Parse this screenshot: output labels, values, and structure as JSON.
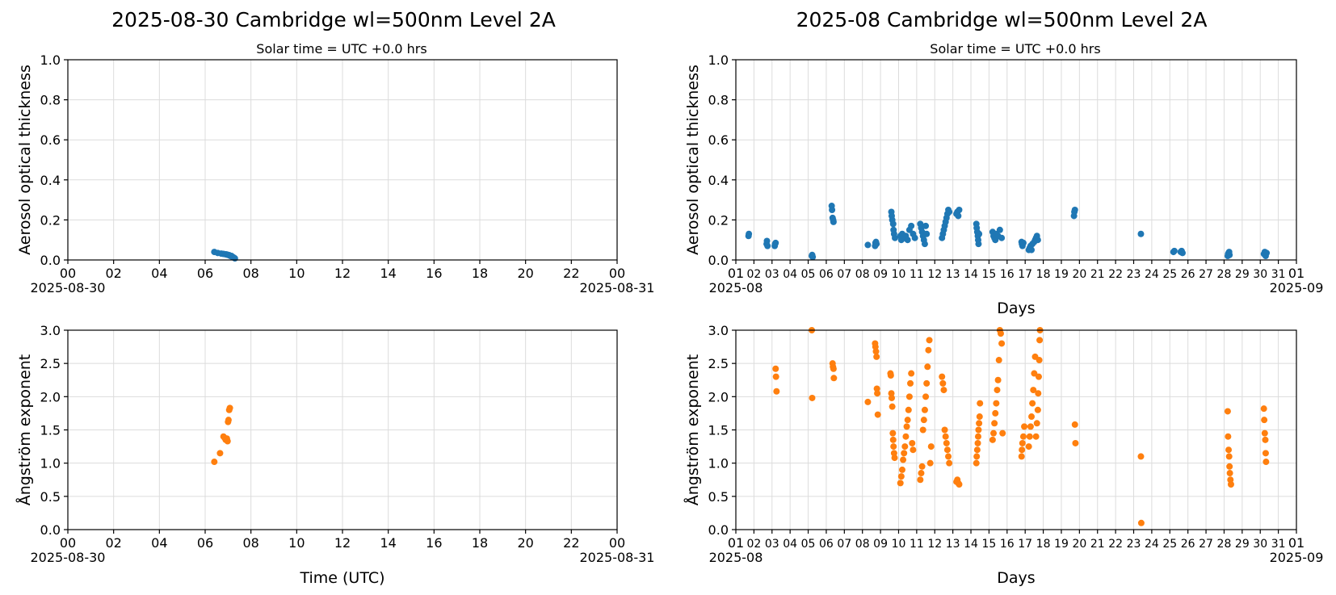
{
  "chart_data": [
    {
      "type": "scatter",
      "title": "2025-08-30  Cambridge  wl=500nm  Level 2A",
      "subtitle": "Solar time = UTC +0.0 hrs",
      "ylabel": "Aerosol optical thickness",
      "xlabel": "",
      "ylim": [
        0,
        1.0
      ],
      "yticks": [
        "0.0",
        "0.2",
        "0.4",
        "0.6",
        "0.8",
        "1.0"
      ],
      "xlim": [
        0,
        24
      ],
      "xticks": [
        "00",
        "02",
        "04",
        "06",
        "08",
        "10",
        "12",
        "14",
        "16",
        "18",
        "20",
        "22",
        "00"
      ],
      "x_date_start": "2025-08-30",
      "x_date_end": "2025-08-31",
      "grid": true,
      "color": "#1f77b4",
      "points": [
        [
          6.4,
          0.04
        ],
        [
          6.55,
          0.035
        ],
        [
          6.7,
          0.032
        ],
        [
          6.8,
          0.03
        ],
        [
          6.9,
          0.028
        ],
        [
          6.95,
          0.027
        ],
        [
          7.0,
          0.025
        ],
        [
          7.05,
          0.024
        ],
        [
          7.1,
          0.02
        ],
        [
          7.15,
          0.02
        ],
        [
          7.2,
          0.015
        ],
        [
          7.25,
          0.012
        ],
        [
          7.3,
          0.008
        ]
      ]
    },
    {
      "type": "scatter",
      "title": "2025-08  Cambridge  wl=500nm  Level 2A",
      "subtitle": "Solar time = UTC +0.0 hrs",
      "ylabel": "Aerosol optical thickness",
      "xlabel": "Days",
      "ylim": [
        0,
        1.0
      ],
      "yticks": [
        "0.0",
        "0.2",
        "0.4",
        "0.6",
        "0.8",
        "1.0"
      ],
      "xlim": [
        1,
        32
      ],
      "xticks": [
        "01",
        "02",
        "03",
        "04",
        "05",
        "06",
        "07",
        "08",
        "09",
        "10",
        "11",
        "12",
        "13",
        "14",
        "15",
        "16",
        "17",
        "18",
        "19",
        "20",
        "21",
        "22",
        "23",
        "24",
        "25",
        "26",
        "27",
        "28",
        "29",
        "30",
        "31",
        "01"
      ],
      "x_date_start": "2025-08",
      "x_date_end": "2025-09",
      "grid": true,
      "color": "#1f77b4",
      "points": [
        [
          1.7,
          0.12
        ],
        [
          1.72,
          0.13
        ],
        [
          2.7,
          0.08
        ],
        [
          2.72,
          0.095
        ],
        [
          2.75,
          0.07
        ],
        [
          3.15,
          0.07
        ],
        [
          3.17,
          0.08
        ],
        [
          3.2,
          0.085
        ],
        [
          5.2,
          0.02
        ],
        [
          5.22,
          0.025
        ],
        [
          5.25,
          0.015
        ],
        [
          6.3,
          0.27
        ],
        [
          6.32,
          0.25
        ],
        [
          6.35,
          0.21
        ],
        [
          6.38,
          0.2
        ],
        [
          6.4,
          0.19
        ],
        [
          8.3,
          0.075
        ],
        [
          8.7,
          0.07
        ],
        [
          8.72,
          0.085
        ],
        [
          8.75,
          0.09
        ],
        [
          8.78,
          0.08
        ],
        [
          9.6,
          0.24
        ],
        [
          9.62,
          0.22
        ],
        [
          9.65,
          0.2
        ],
        [
          9.7,
          0.18
        ],
        [
          9.72,
          0.15
        ],
        [
          9.75,
          0.13
        ],
        [
          9.8,
          0.11
        ],
        [
          10.1,
          0.12
        ],
        [
          10.15,
          0.1
        ],
        [
          10.2,
          0.13
        ],
        [
          10.3,
          0.11
        ],
        [
          10.4,
          0.12
        ],
        [
          10.5,
          0.1
        ],
        [
          10.6,
          0.15
        ],
        [
          10.7,
          0.17
        ],
        [
          10.8,
          0.13
        ],
        [
          10.9,
          0.11
        ],
        [
          11.2,
          0.18
        ],
        [
          11.25,
          0.16
        ],
        [
          11.3,
          0.14
        ],
        [
          11.35,
          0.12
        ],
        [
          11.4,
          0.1
        ],
        [
          11.45,
          0.08
        ],
        [
          11.5,
          0.17
        ],
        [
          11.55,
          0.13
        ],
        [
          12.4,
          0.11
        ],
        [
          12.45,
          0.13
        ],
        [
          12.5,
          0.15
        ],
        [
          12.55,
          0.17
        ],
        [
          12.6,
          0.19
        ],
        [
          12.65,
          0.21
        ],
        [
          12.7,
          0.23
        ],
        [
          12.75,
          0.25
        ],
        [
          12.8,
          0.24
        ],
        [
          13.2,
          0.23
        ],
        [
          13.25,
          0.24
        ],
        [
          13.3,
          0.22
        ],
        [
          13.35,
          0.25
        ],
        [
          14.3,
          0.18
        ],
        [
          14.32,
          0.16
        ],
        [
          14.35,
          0.14
        ],
        [
          14.38,
          0.12
        ],
        [
          14.4,
          0.1
        ],
        [
          14.42,
          0.08
        ],
        [
          14.45,
          0.13
        ],
        [
          15.2,
          0.14
        ],
        [
          15.25,
          0.12
        ],
        [
          15.3,
          0.11
        ],
        [
          15.35,
          0.1
        ],
        [
          15.4,
          0.13
        ],
        [
          15.5,
          0.12
        ],
        [
          15.6,
          0.15
        ],
        [
          15.7,
          0.11
        ],
        [
          16.8,
          0.09
        ],
        [
          16.82,
          0.08
        ],
        [
          16.85,
          0.07
        ],
        [
          16.9,
          0.085
        ],
        [
          17.2,
          0.05
        ],
        [
          17.25,
          0.06
        ],
        [
          17.3,
          0.07
        ],
        [
          17.35,
          0.05
        ],
        [
          17.4,
          0.08
        ],
        [
          17.5,
          0.09
        ],
        [
          17.55,
          0.1
        ],
        [
          17.6,
          0.11
        ],
        [
          17.65,
          0.12
        ],
        [
          17.7,
          0.1
        ],
        [
          19.7,
          0.22
        ],
        [
          19.72,
          0.24
        ],
        [
          19.75,
          0.25
        ],
        [
          23.4,
          0.13
        ],
        [
          25.2,
          0.04
        ],
        [
          25.25,
          0.045
        ],
        [
          25.6,
          0.04
        ],
        [
          25.65,
          0.045
        ],
        [
          25.7,
          0.035
        ],
        [
          28.2,
          0.02
        ],
        [
          28.22,
          0.03
        ],
        [
          28.25,
          0.035
        ],
        [
          28.28,
          0.04
        ],
        [
          28.3,
          0.025
        ],
        [
          30.2,
          0.03
        ],
        [
          30.25,
          0.04
        ],
        [
          30.3,
          0.02
        ],
        [
          30.35,
          0.035
        ]
      ]
    },
    {
      "type": "scatter",
      "title": "",
      "subtitle": "",
      "ylabel": "Ångström exponent",
      "xlabel": "Time (UTC)",
      "ylim": [
        0,
        3.0
      ],
      "yticks": [
        "0.0",
        "0.5",
        "1.0",
        "1.5",
        "2.0",
        "2.5",
        "3.0"
      ],
      "xlim": [
        0,
        24
      ],
      "xticks": [
        "00",
        "02",
        "04",
        "06",
        "08",
        "10",
        "12",
        "14",
        "16",
        "18",
        "20",
        "22",
        "00"
      ],
      "x_date_start": "2025-08-30",
      "x_date_end": "2025-08-31",
      "grid": true,
      "color": "#ff7f0e",
      "points": [
        [
          6.4,
          1.02
        ],
        [
          6.65,
          1.15
        ],
        [
          6.8,
          1.4
        ],
        [
          6.85,
          1.38
        ],
        [
          6.9,
          1.35
        ],
        [
          6.95,
          1.37
        ],
        [
          6.98,
          1.33
        ],
        [
          7.0,
          1.62
        ],
        [
          7.02,
          1.65
        ],
        [
          7.05,
          1.8
        ],
        [
          7.08,
          1.83
        ]
      ]
    },
    {
      "type": "scatter",
      "title": "",
      "subtitle": "",
      "ylabel": "Ångström exponent",
      "xlabel": "Days",
      "ylim": [
        0,
        3.0
      ],
      "yticks": [
        "0.0",
        "0.5",
        "1.0",
        "1.5",
        "2.0",
        "2.5",
        "3.0"
      ],
      "xlim": [
        1,
        32
      ],
      "xticks": [
        "01",
        "02",
        "03",
        "04",
        "05",
        "06",
        "07",
        "08",
        "09",
        "10",
        "11",
        "12",
        "13",
        "14",
        "15",
        "16",
        "17",
        "18",
        "19",
        "20",
        "21",
        "22",
        "23",
        "24",
        "25",
        "26",
        "27",
        "28",
        "29",
        "30",
        "31",
        "01"
      ],
      "x_date_start": "2025-08",
      "x_date_end": "2025-09",
      "grid": true,
      "color": "#ff7f0e",
      "points": [
        [
          3.2,
          2.42
        ],
        [
          3.22,
          2.3
        ],
        [
          3.25,
          2.08
        ],
        [
          5.2,
          3.0
        ],
        [
          5.22,
          1.98
        ],
        [
          6.35,
          2.5
        ],
        [
          6.37,
          2.45
        ],
        [
          6.4,
          2.42
        ],
        [
          6.42,
          2.28
        ],
        [
          8.3,
          1.92
        ],
        [
          8.7,
          2.8
        ],
        [
          8.72,
          2.75
        ],
        [
          8.75,
          2.68
        ],
        [
          8.78,
          2.6
        ],
        [
          8.8,
          2.12
        ],
        [
          8.82,
          2.05
        ],
        [
          8.85,
          1.73
        ],
        [
          9.55,
          2.35
        ],
        [
          9.57,
          2.32
        ],
        [
          9.6,
          2.05
        ],
        [
          9.62,
          1.98
        ],
        [
          9.65,
          1.85
        ],
        [
          9.68,
          1.45
        ],
        [
          9.7,
          1.35
        ],
        [
          9.72,
          1.25
        ],
        [
          9.75,
          1.15
        ],
        [
          9.78,
          1.08
        ],
        [
          10.1,
          0.7
        ],
        [
          10.15,
          0.8
        ],
        [
          10.2,
          0.9
        ],
        [
          10.25,
          1.05
        ],
        [
          10.3,
          1.15
        ],
        [
          10.35,
          1.25
        ],
        [
          10.4,
          1.4
        ],
        [
          10.45,
          1.55
        ],
        [
          10.5,
          1.65
        ],
        [
          10.55,
          1.8
        ],
        [
          10.6,
          2.0
        ],
        [
          10.65,
          2.2
        ],
        [
          10.7,
          2.35
        ],
        [
          10.75,
          1.3
        ],
        [
          10.8,
          1.2
        ],
        [
          11.2,
          0.75
        ],
        [
          11.25,
          0.85
        ],
        [
          11.3,
          0.95
        ],
        [
          11.35,
          1.5
        ],
        [
          11.4,
          1.65
        ],
        [
          11.45,
          1.8
        ],
        [
          11.5,
          2.0
        ],
        [
          11.55,
          2.2
        ],
        [
          11.6,
          2.45
        ],
        [
          11.65,
          2.7
        ],
        [
          11.7,
          2.85
        ],
        [
          11.75,
          1.0
        ],
        [
          11.8,
          1.25
        ],
        [
          12.4,
          2.3
        ],
        [
          12.45,
          2.2
        ],
        [
          12.5,
          2.1
        ],
        [
          12.55,
          1.5
        ],
        [
          12.6,
          1.4
        ],
        [
          12.65,
          1.3
        ],
        [
          12.7,
          1.2
        ],
        [
          12.75,
          1.1
        ],
        [
          12.8,
          1.0
        ],
        [
          13.2,
          0.72
        ],
        [
          13.25,
          0.75
        ],
        [
          13.3,
          0.7
        ],
        [
          13.35,
          0.68
        ],
        [
          14.3,
          1.0
        ],
        [
          14.32,
          1.1
        ],
        [
          14.35,
          1.2
        ],
        [
          14.38,
          1.3
        ],
        [
          14.4,
          1.4
        ],
        [
          14.42,
          1.5
        ],
        [
          14.45,
          1.6
        ],
        [
          14.48,
          1.7
        ],
        [
          14.5,
          1.9
        ],
        [
          15.2,
          1.35
        ],
        [
          15.25,
          1.45
        ],
        [
          15.3,
          1.6
        ],
        [
          15.35,
          1.75
        ],
        [
          15.4,
          1.9
        ],
        [
          15.45,
          2.1
        ],
        [
          15.5,
          2.25
        ],
        [
          15.55,
          2.55
        ],
        [
          15.6,
          3.0
        ],
        [
          15.65,
          2.95
        ],
        [
          15.7,
          2.8
        ],
        [
          15.75,
          1.45
        ],
        [
          16.8,
          1.1
        ],
        [
          16.82,
          1.2
        ],
        [
          16.85,
          1.3
        ],
        [
          16.9,
          1.4
        ],
        [
          16.95,
          1.55
        ],
        [
          17.2,
          1.25
        ],
        [
          17.25,
          1.4
        ],
        [
          17.3,
          1.55
        ],
        [
          17.35,
          1.7
        ],
        [
          17.4,
          1.9
        ],
        [
          17.45,
          2.1
        ],
        [
          17.5,
          2.35
        ],
        [
          17.55,
          2.6
        ],
        [
          17.6,
          1.4
        ],
        [
          17.65,
          1.6
        ],
        [
          17.7,
          1.8
        ],
        [
          17.72,
          2.05
        ],
        [
          17.75,
          2.3
        ],
        [
          17.78,
          2.55
        ],
        [
          17.8,
          2.85
        ],
        [
          17.82,
          3.0
        ],
        [
          19.75,
          1.58
        ],
        [
          19.78,
          1.3
        ],
        [
          23.4,
          1.1
        ],
        [
          23.42,
          0.1
        ],
        [
          28.2,
          1.78
        ],
        [
          28.22,
          1.4
        ],
        [
          28.25,
          1.2
        ],
        [
          28.28,
          1.1
        ],
        [
          28.3,
          0.95
        ],
        [
          28.32,
          0.85
        ],
        [
          28.35,
          0.75
        ],
        [
          28.38,
          0.68
        ],
        [
          30.2,
          1.82
        ],
        [
          30.22,
          1.65
        ],
        [
          30.25,
          1.45
        ],
        [
          30.28,
          1.35
        ],
        [
          30.3,
          1.15
        ],
        [
          30.32,
          1.02
        ]
      ]
    }
  ]
}
